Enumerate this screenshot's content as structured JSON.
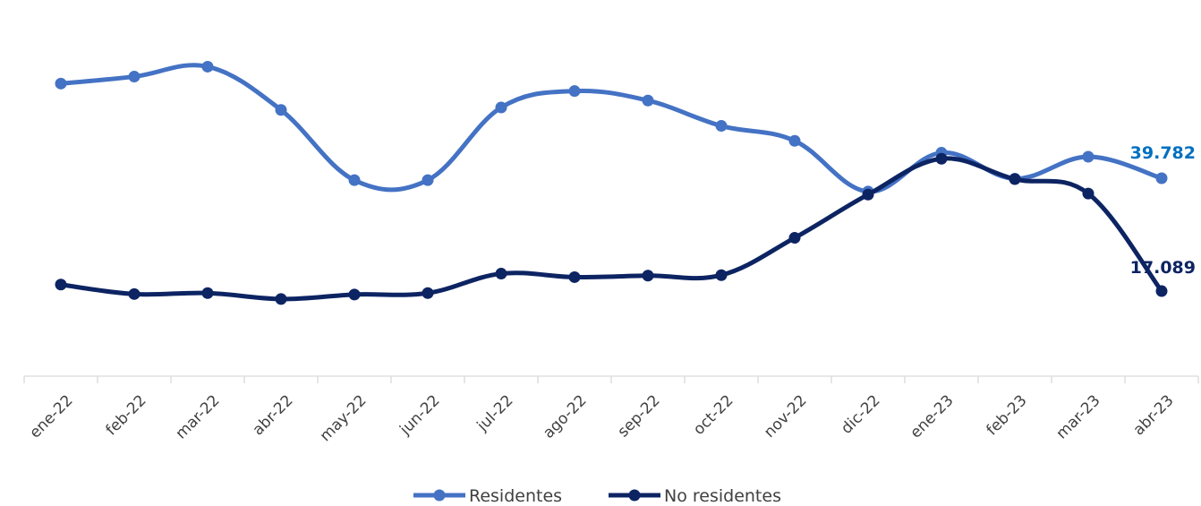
{
  "chart_data": {
    "type": "line",
    "categories": [
      "ene-22",
      "feb-22",
      "mar-22",
      "abr-22",
      "may-22",
      "jun-22",
      "jul-22",
      "ago-22",
      "sep-22",
      "oct-22",
      "nov-22",
      "dic-22",
      "ene-23",
      "feb-23",
      "mar-23",
      "abr-23"
    ],
    "series": [
      {
        "name": "Residentes",
        "color": "#4472C4",
        "values": [
          58800,
          60200,
          62200,
          53500,
          39400,
          39400,
          54000,
          57300,
          55400,
          50300,
          47300,
          37100,
          44900,
          39700,
          44100,
          39782
        ],
        "end_label": "39.782",
        "end_label_color": "#0070C0"
      },
      {
        "name": "No residentes",
        "color": "#0D2463",
        "values": [
          18400,
          16500,
          16700,
          15500,
          16400,
          16700,
          20600,
          19900,
          20200,
          20300,
          27800,
          36500,
          43700,
          39600,
          36700,
          17089
        ],
        "end_label": "17.089",
        "end_label_color": "#0D2463"
      }
    ],
    "ylim": [
      0,
      72000
    ],
    "grid": false,
    "legend_position": "bottom"
  }
}
